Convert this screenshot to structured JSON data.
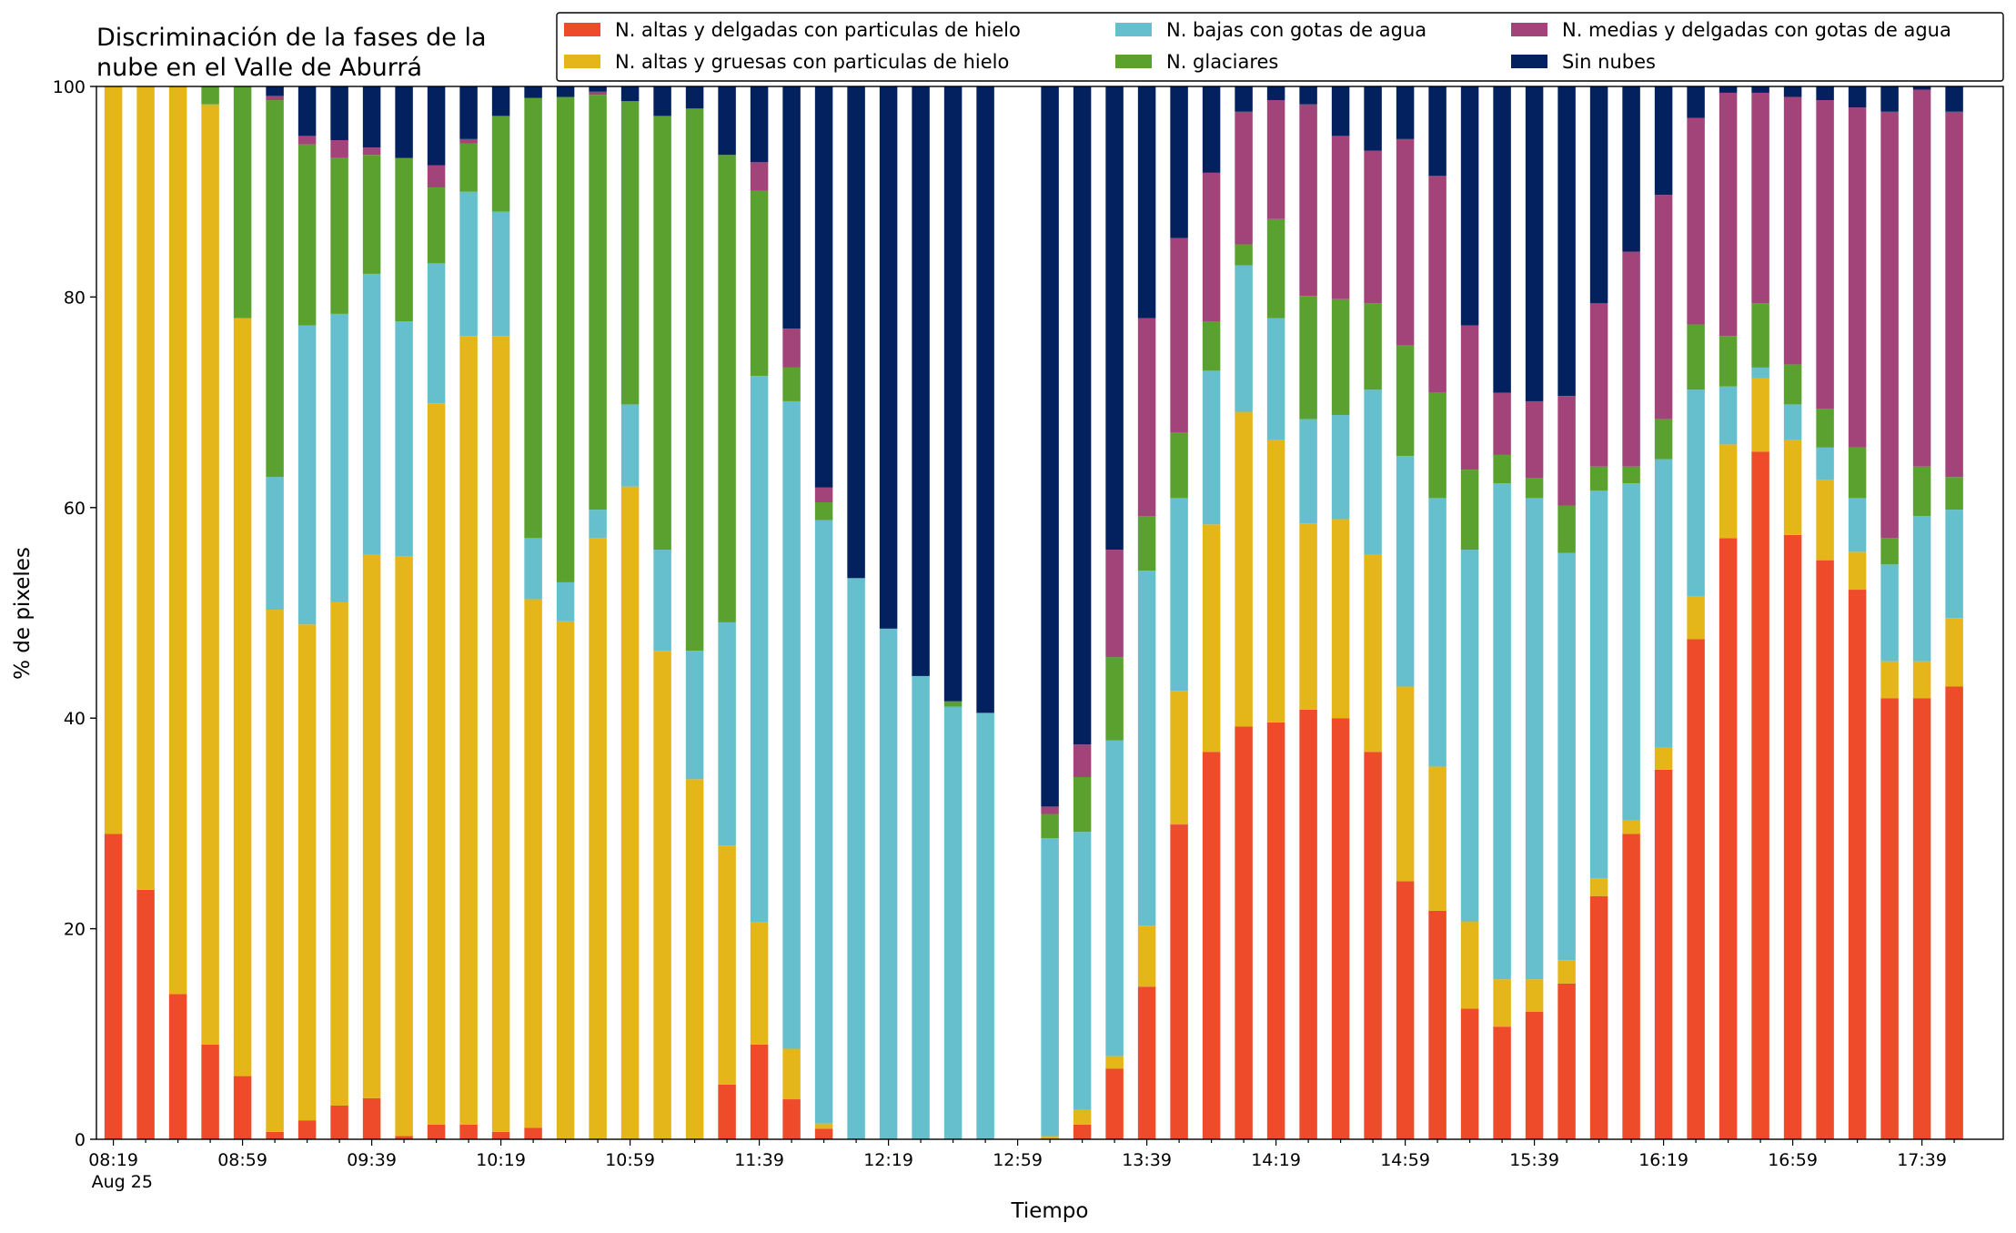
{
  "chart_data": {
    "type": "stacked_bar",
    "title": [
      "Discriminación de la fases de la",
      "nube en el Valle de Aburrá"
    ],
    "xlabel": "Tiempo",
    "ylabel": "% de pixeles",
    "categories": [
      "08:19",
      null,
      null,
      null,
      "08:59",
      null,
      null,
      null,
      "09:39",
      null,
      null,
      null,
      "10:19",
      null,
      null,
      null,
      "10:59",
      null,
      null,
      null,
      "11:39",
      null,
      null,
      null,
      "12:19",
      null,
      null,
      null,
      "12:59",
      null,
      null,
      null,
      "13:39",
      null,
      null,
      null,
      "14:19",
      null,
      null,
      null,
      "14:59",
      null,
      null,
      null,
      "15:39",
      null,
      null,
      null,
      "16:19",
      null,
      null,
      null,
      "16:59",
      null,
      null,
      null,
      "17:39",
      null
    ],
    "x_sublabel": "Aug 25",
    "ylim": [
      0,
      100
    ],
    "yticks": [
      0,
      20,
      40,
      60,
      80,
      100
    ],
    "legend": "top-right",
    "series": [
      {
        "name": "N. altas y delgadas con particulas de hielo",
        "color": "#ee4b2b",
        "values": [
          29,
          23.7,
          13.8,
          9,
          6,
          0.7,
          1.8,
          3.2,
          3.9,
          0.3,
          1.4,
          1.4,
          0.7,
          1.1,
          0,
          0,
          0,
          0,
          0,
          5.2,
          9,
          3.8,
          1,
          0,
          0,
          0,
          0,
          0,
          null,
          0,
          1.4,
          6.7,
          14.5,
          29.9,
          36.8,
          39.2,
          39.6,
          40.8,
          40,
          36.8,
          24.5,
          21.7,
          12.4,
          10.7,
          12.1,
          14.8,
          23.1,
          29,
          35.1,
          47.5,
          57.1,
          65.3,
          57.4,
          55,
          52.2,
          41.9,
          41.9,
          43
        ]
      },
      {
        "name": "N. altas y gruesas con particulas de hielo",
        "color": "#e4b61a",
        "values": [
          71,
          76.3,
          86.2,
          89.3,
          72,
          49.6,
          47.1,
          47.8,
          51.6,
          55.1,
          68.5,
          74.9,
          75.6,
          50.2,
          49.2,
          57.1,
          62,
          46.4,
          34.2,
          22.7,
          11.6,
          4.8,
          0.5,
          0,
          0,
          0,
          0,
          0,
          null,
          0.3,
          1.4,
          1.2,
          5.8,
          12.7,
          21.6,
          29.9,
          26.8,
          17.7,
          18.9,
          18.7,
          18.5,
          13.7,
          8.3,
          4.5,
          3.1,
          2.2,
          1.7,
          1.3,
          2.1,
          4.1,
          8.9,
          7,
          9,
          7.6,
          3.6,
          3.5,
          3.5,
          6.5
        ]
      },
      {
        "name": "N. bajas con gotas de agua",
        "color": "#66bfcc",
        "values": [
          0,
          0,
          0,
          0,
          0,
          12.6,
          28.4,
          27.4,
          26.7,
          22.3,
          13.3,
          13.7,
          11.8,
          5.8,
          3.7,
          2.7,
          7.8,
          9.6,
          12.2,
          21.2,
          51.9,
          61.5,
          57.3,
          53.3,
          48.5,
          44,
          41.1,
          40.5,
          null,
          28.3,
          26.4,
          30,
          33.7,
          18.3,
          14.6,
          13.9,
          11.6,
          9.9,
          9.9,
          15.7,
          21.9,
          25.5,
          35.3,
          47.1,
          45.7,
          38.7,
          36.8,
          32,
          27.4,
          19.6,
          5.5,
          1,
          3.4,
          3.1,
          5.1,
          9.2,
          13.8,
          10.3
        ]
      },
      {
        "name": "N. glaciares",
        "color": "#5ba12f",
        "values": [
          0,
          0,
          0,
          1.7,
          22,
          35.8,
          17.2,
          14.8,
          11.3,
          15.5,
          7.2,
          4.6,
          9.1,
          41.8,
          46.1,
          39.4,
          28.8,
          41.2,
          51.5,
          44.4,
          17.6,
          3.2,
          1.7,
          0,
          0,
          0,
          0.5,
          0,
          null,
          2.3,
          5.2,
          7.9,
          5.2,
          6.2,
          4.7,
          2,
          9.4,
          11.7,
          11,
          8.2,
          10.5,
          10,
          7.6,
          2.7,
          1.9,
          4.5,
          2.3,
          1.6,
          3.8,
          6.2,
          4.8,
          6.1,
          3.8,
          3.7,
          4.8,
          2.5,
          4.7,
          3.1
        ]
      },
      {
        "name": "N. medias y delgadas con gotas de agua",
        "color": "#a2447a",
        "values": [
          0,
          0,
          0,
          0,
          0,
          0.4,
          0.8,
          1.7,
          0.7,
          0,
          2.1,
          0.4,
          0,
          0,
          0,
          0.3,
          0,
          0,
          0,
          0,
          2.7,
          3.7,
          1.4,
          0,
          0,
          0,
          0,
          0,
          null,
          0.7,
          3.1,
          10.2,
          18.8,
          18.5,
          14.1,
          12.6,
          11.3,
          18.2,
          15.5,
          14.5,
          19.6,
          20.6,
          13.7,
          5.9,
          7.3,
          10.4,
          15.5,
          20.4,
          21.3,
          19.6,
          23.1,
          20,
          25.4,
          29.3,
          32.3,
          40.5,
          35.8,
          34.7
        ]
      },
      {
        "name": "Sin nubes",
        "color": "#03215e",
        "values": [
          0,
          0,
          0,
          0,
          0,
          0.9,
          4.7,
          5.1,
          5.8,
          6.8,
          7.5,
          5,
          2.8,
          1.1,
          1,
          0.5,
          1.4,
          2.8,
          2.1,
          6.5,
          7.2,
          23,
          38.1,
          46.7,
          51.5,
          56,
          58.4,
          59.5,
          null,
          68.4,
          62.5,
          44,
          22,
          14.4,
          8.2,
          2.4,
          1.3,
          1.7,
          4.7,
          6.1,
          5,
          8.5,
          22.7,
          29.1,
          29.9,
          29.4,
          20.6,
          15.7,
          10.3,
          3,
          0.6,
          0.6,
          1,
          1.3,
          2,
          2.4,
          0.3,
          2.4
        ]
      }
    ]
  }
}
